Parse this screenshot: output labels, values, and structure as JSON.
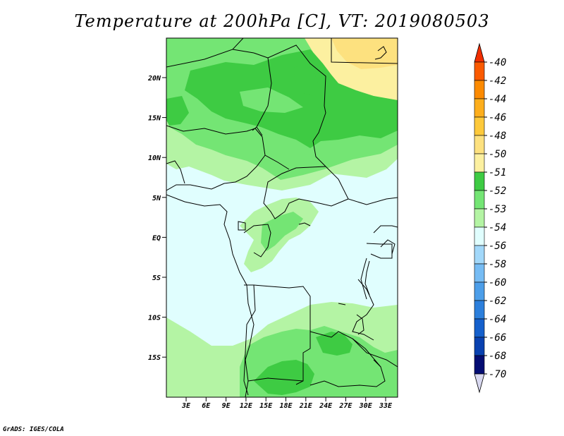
{
  "title": "Temperature at 200hPa [C], VT: 2019080503",
  "credit": "GrADS: IGES/COLA",
  "map": {
    "lat_labels": [
      "20N",
      "15N",
      "10N",
      "5N",
      "EQ",
      "5S",
      "10S",
      "15S"
    ],
    "lon_labels": [
      "3E",
      "6E",
      "9E",
      "12E",
      "15E",
      "18E",
      "21E",
      "24E",
      "27E",
      "30E",
      "33E"
    ],
    "colors": {
      "c51": "#fcf0a0",
      "c50": "#fde17f",
      "c52": "#3ecb43",
      "c53": "#74e574",
      "c54a": "#b4f4a4",
      "c54b": "#e0fefe"
    },
    "features": [
      "coastline",
      "country-borders",
      "lakes"
    ]
  },
  "colorbar": {
    "labels": [
      "-40",
      "-42",
      "-44",
      "-46",
      "-48",
      "-50",
      "-51",
      "-52",
      "-53",
      "-54",
      "-56",
      "-58",
      "-60",
      "-62",
      "-64",
      "-66",
      "-68",
      "-70"
    ],
    "colors": [
      "#f12e00",
      "#fa5a00",
      "#fc8a00",
      "#fdae1c",
      "#fdc93b",
      "#fde17f",
      "#fcf0a0",
      "#3ecb43",
      "#74e574",
      "#b4f4a4",
      "#e0fefe",
      "#a2d8fa",
      "#76bcf4",
      "#4c9ee9",
      "#2c7fdc",
      "#1560cc",
      "#0941b0",
      "#040d73",
      "#d8d8f0"
    ]
  }
}
